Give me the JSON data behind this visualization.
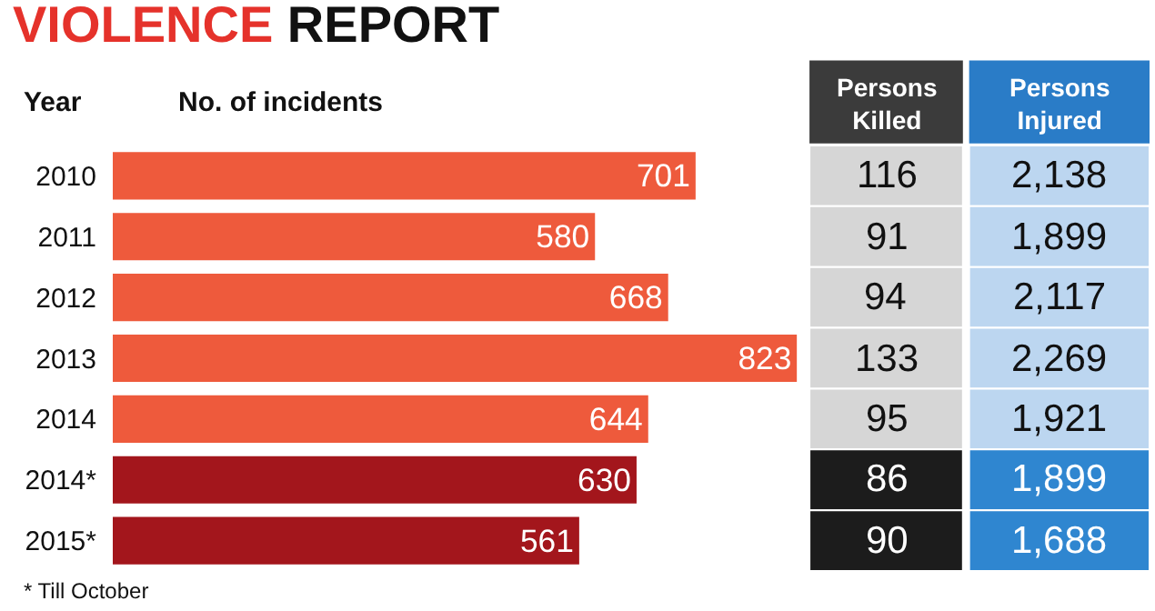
{
  "chart_data": [
    {
      "type": "bar",
      "orientation": "horizontal",
      "title": "VIOLENCE REPORT",
      "ylabel": "Year",
      "xlabel": "No. of incidents",
      "categories": [
        "2010",
        "2011",
        "2012",
        "2013",
        "2014",
        "2014*",
        "2015*"
      ],
      "values": [
        701,
        580,
        668,
        823,
        644,
        630,
        561
      ],
      "colors": [
        "#ee5a3c",
        "#ee5a3c",
        "#ee5a3c",
        "#ee5a3c",
        "#ee5a3c",
        "#a3161c",
        "#a3161c"
      ],
      "data_labels": true,
      "tick_labels": "y",
      "grid": false,
      "legend": false,
      "annotations": [
        "* Till October"
      ]
    },
    {
      "type": "other",
      "title": "Persons Killed",
      "values": [
        116,
        91,
        94,
        133,
        95,
        86,
        90
      ],
      "data_labels": true,
      "colors": [
        "#d6d6d6",
        "#d6d6d6",
        "#d6d6d6",
        "#d6d6d6",
        "#d6d6d6",
        "#1c1c1c",
        "#1c1c1c"
      ]
    },
    {
      "type": "other",
      "title": "Persons Injured",
      "values": [
        2138,
        1899,
        2117,
        2269,
        1921,
        1899,
        1688
      ],
      "value_labels": [
        "2,138",
        "1,899",
        "2,117",
        "2,269",
        "1,921",
        "1,899",
        "1,688"
      ],
      "colors": [
        "#bcd6f0",
        "#bcd6f0",
        "#bcd6f0",
        "#bcd6f0",
        "#bcd6f0",
        "#2f86d0",
        "#2f86d0"
      ]
    }
  ]
}
